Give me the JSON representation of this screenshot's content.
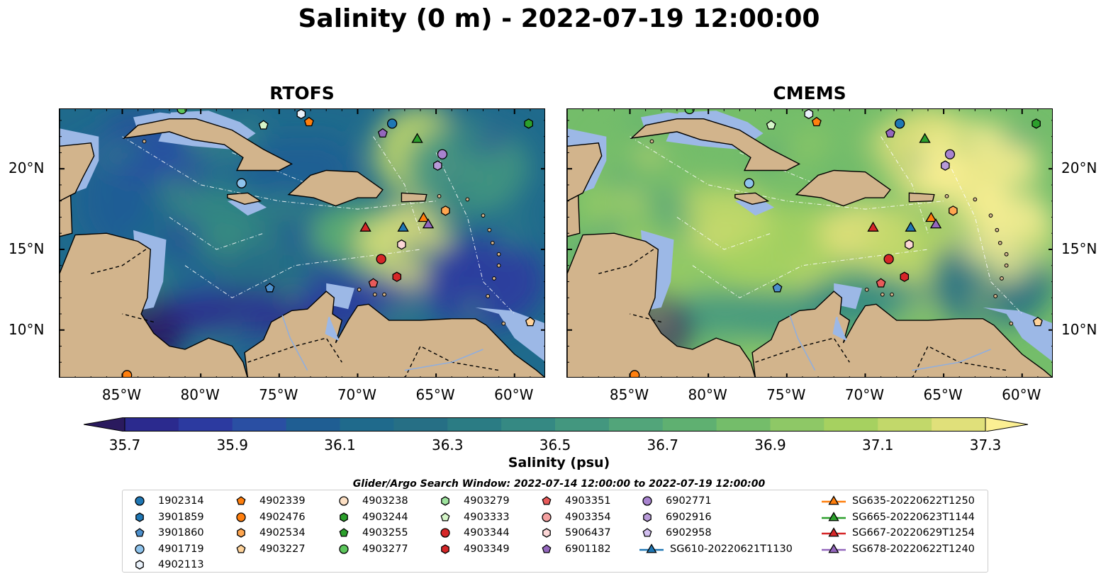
{
  "title": "Salinity (0 m) - 2022-07-19 12:00:00",
  "panels": [
    {
      "title": "RTOFS"
    },
    {
      "title": "CMEMS"
    }
  ],
  "lon_ticks": [
    "85°W",
    "80°W",
    "75°W",
    "70°W",
    "65°W",
    "60°W"
  ],
  "lon_values": [
    -85,
    -80,
    -75,
    -70,
    -65,
    -60
  ],
  "lat_ticks": [
    "20°N",
    "15°N",
    "10°N"
  ],
  "lat_values": [
    20,
    15,
    10
  ],
  "map_extent": {
    "lon": [
      -89,
      -58
    ],
    "lat": [
      7,
      23.7
    ]
  },
  "colorbar": {
    "label": "Salinity (psu)",
    "ticks": [
      "35.7",
      "35.9",
      "36.1",
      "36.3",
      "36.5",
      "36.7",
      "36.9",
      "37.1",
      "37.3"
    ],
    "min": 35.7,
    "max": 37.3,
    "step": 0.1,
    "colormap": [
      "#2a1a5e",
      "#2b2a8e",
      "#2c3aa0",
      "#2a4fa3",
      "#1f5e93",
      "#1f6a8c",
      "#266f85",
      "#2b7c84",
      "#358983",
      "#43977f",
      "#52a57a",
      "#5fb071",
      "#74bd6a",
      "#8ec866",
      "#a6d160",
      "#c2d86a",
      "#e0e07a",
      "#fbef93"
    ]
  },
  "search_window": "Glider/Argo Search Window: 2022-07-14 12:00:00 to 2022-07-19 12:00:00",
  "colors": {
    "land": "#d2b48c",
    "shelf": "#9cb8e6",
    "deep_ocean": "#2a1a5e"
  },
  "chart_data": {
    "type": "map",
    "variable": "Salinity",
    "units": "psu",
    "depth_m": 0,
    "time": "2022-07-19 12:00:00",
    "floats": [
      {
        "id": "1902314",
        "marker": "circle",
        "color": "#1f77b4",
        "lon": -67.8,
        "lat": 22.8
      },
      {
        "id": "3901859",
        "marker": "hexagon",
        "color": "#1f77b4",
        "lon": null,
        "lat": null
      },
      {
        "id": "3901860",
        "marker": "pentagon",
        "color": "#4c8fcc",
        "lon": -75.6,
        "lat": 12.6
      },
      {
        "id": "4901719",
        "marker": "circle",
        "color": "#8ec3ec",
        "lon": -77.4,
        "lat": 19.1
      },
      {
        "id": "4902113",
        "marker": "hexagon",
        "color": "#eaf2fb",
        "lon": -73.6,
        "lat": 23.4
      },
      {
        "id": "4902339",
        "marker": "pentagon",
        "color": "#ff7f0e",
        "lon": -73.1,
        "lat": 22.9
      },
      {
        "id": "4902476",
        "marker": "circle",
        "color": "#ff7f0e",
        "lon": -84.7,
        "lat": 7.2
      },
      {
        "id": "4902534",
        "marker": "hexagon",
        "color": "#ffa650",
        "lon": -64.4,
        "lat": 17.4
      },
      {
        "id": "4903227",
        "marker": "pentagon",
        "color": "#ffd39a",
        "lon": -59.0,
        "lat": 10.5
      },
      {
        "id": "4903238",
        "marker": "circle",
        "color": "#fde0c4",
        "lon": null,
        "lat": null
      },
      {
        "id": "4903244",
        "marker": "hexagon",
        "color": "#2ca02c",
        "lon": -59.1,
        "lat": 22.8
      },
      {
        "id": "4903255",
        "marker": "pentagon",
        "color": "#2ca02c",
        "lon": null,
        "lat": null
      },
      {
        "id": "4903277",
        "marker": "circle",
        "color": "#5cc65c",
        "lon": -81.2,
        "lat": 23.7
      },
      {
        "id": "4903279",
        "marker": "hexagon",
        "color": "#9de39d",
        "lon": null,
        "lat": null
      },
      {
        "id": "4903333",
        "marker": "pentagon",
        "color": "#d5f5c8",
        "lon": -76.0,
        "lat": 22.7
      },
      {
        "id": "4903344",
        "marker": "circle",
        "color": "#d62728",
        "lon": -68.5,
        "lat": 14.4
      },
      {
        "id": "4903349",
        "marker": "hexagon",
        "color": "#d62728",
        "lon": -67.5,
        "lat": 13.3
      },
      {
        "id": "4903351",
        "marker": "pentagon",
        "color": "#e85a5a",
        "lon": -69.0,
        "lat": 12.9
      },
      {
        "id": "4903354",
        "marker": "circle",
        "color": "#f4a0a0",
        "lon": null,
        "lat": null
      },
      {
        "id": "5906437",
        "marker": "hexagon",
        "color": "#fcd6d6",
        "lon": -67.2,
        "lat": 15.3
      },
      {
        "id": "6901182",
        "marker": "pentagon",
        "color": "#9467bd",
        "lon": -68.4,
        "lat": 22.2
      },
      {
        "id": "6902771",
        "marker": "circle",
        "color": "#a883cf",
        "lon": -64.6,
        "lat": 20.9
      },
      {
        "id": "6902916",
        "marker": "hexagon",
        "color": "#b89ad8",
        "lon": -64.9,
        "lat": 20.2
      },
      {
        "id": "6902958",
        "marker": "pentagon",
        "color": "#d2bff0",
        "lon": null,
        "lat": null
      }
    ],
    "gliders": [
      {
        "id": "SG610-20220621T1130",
        "color": "#1f77b4",
        "lon": -67.1,
        "lat": 16.4
      },
      {
        "id": "SG635-20220622T1250",
        "color": "#ff7f0e",
        "lon": -65.8,
        "lat": 17.0
      },
      {
        "id": "SG665-20220623T1144",
        "color": "#2ca02c",
        "lon": -66.2,
        "lat": 21.9
      },
      {
        "id": "SG667-20220629T1254",
        "color": "#d62728",
        "lon": -69.5,
        "lat": 16.4
      },
      {
        "id": "SG678-20220622T1240",
        "color": "#9467bd",
        "lon": -65.5,
        "lat": 16.6
      }
    ],
    "legend_placement": "bottom"
  }
}
